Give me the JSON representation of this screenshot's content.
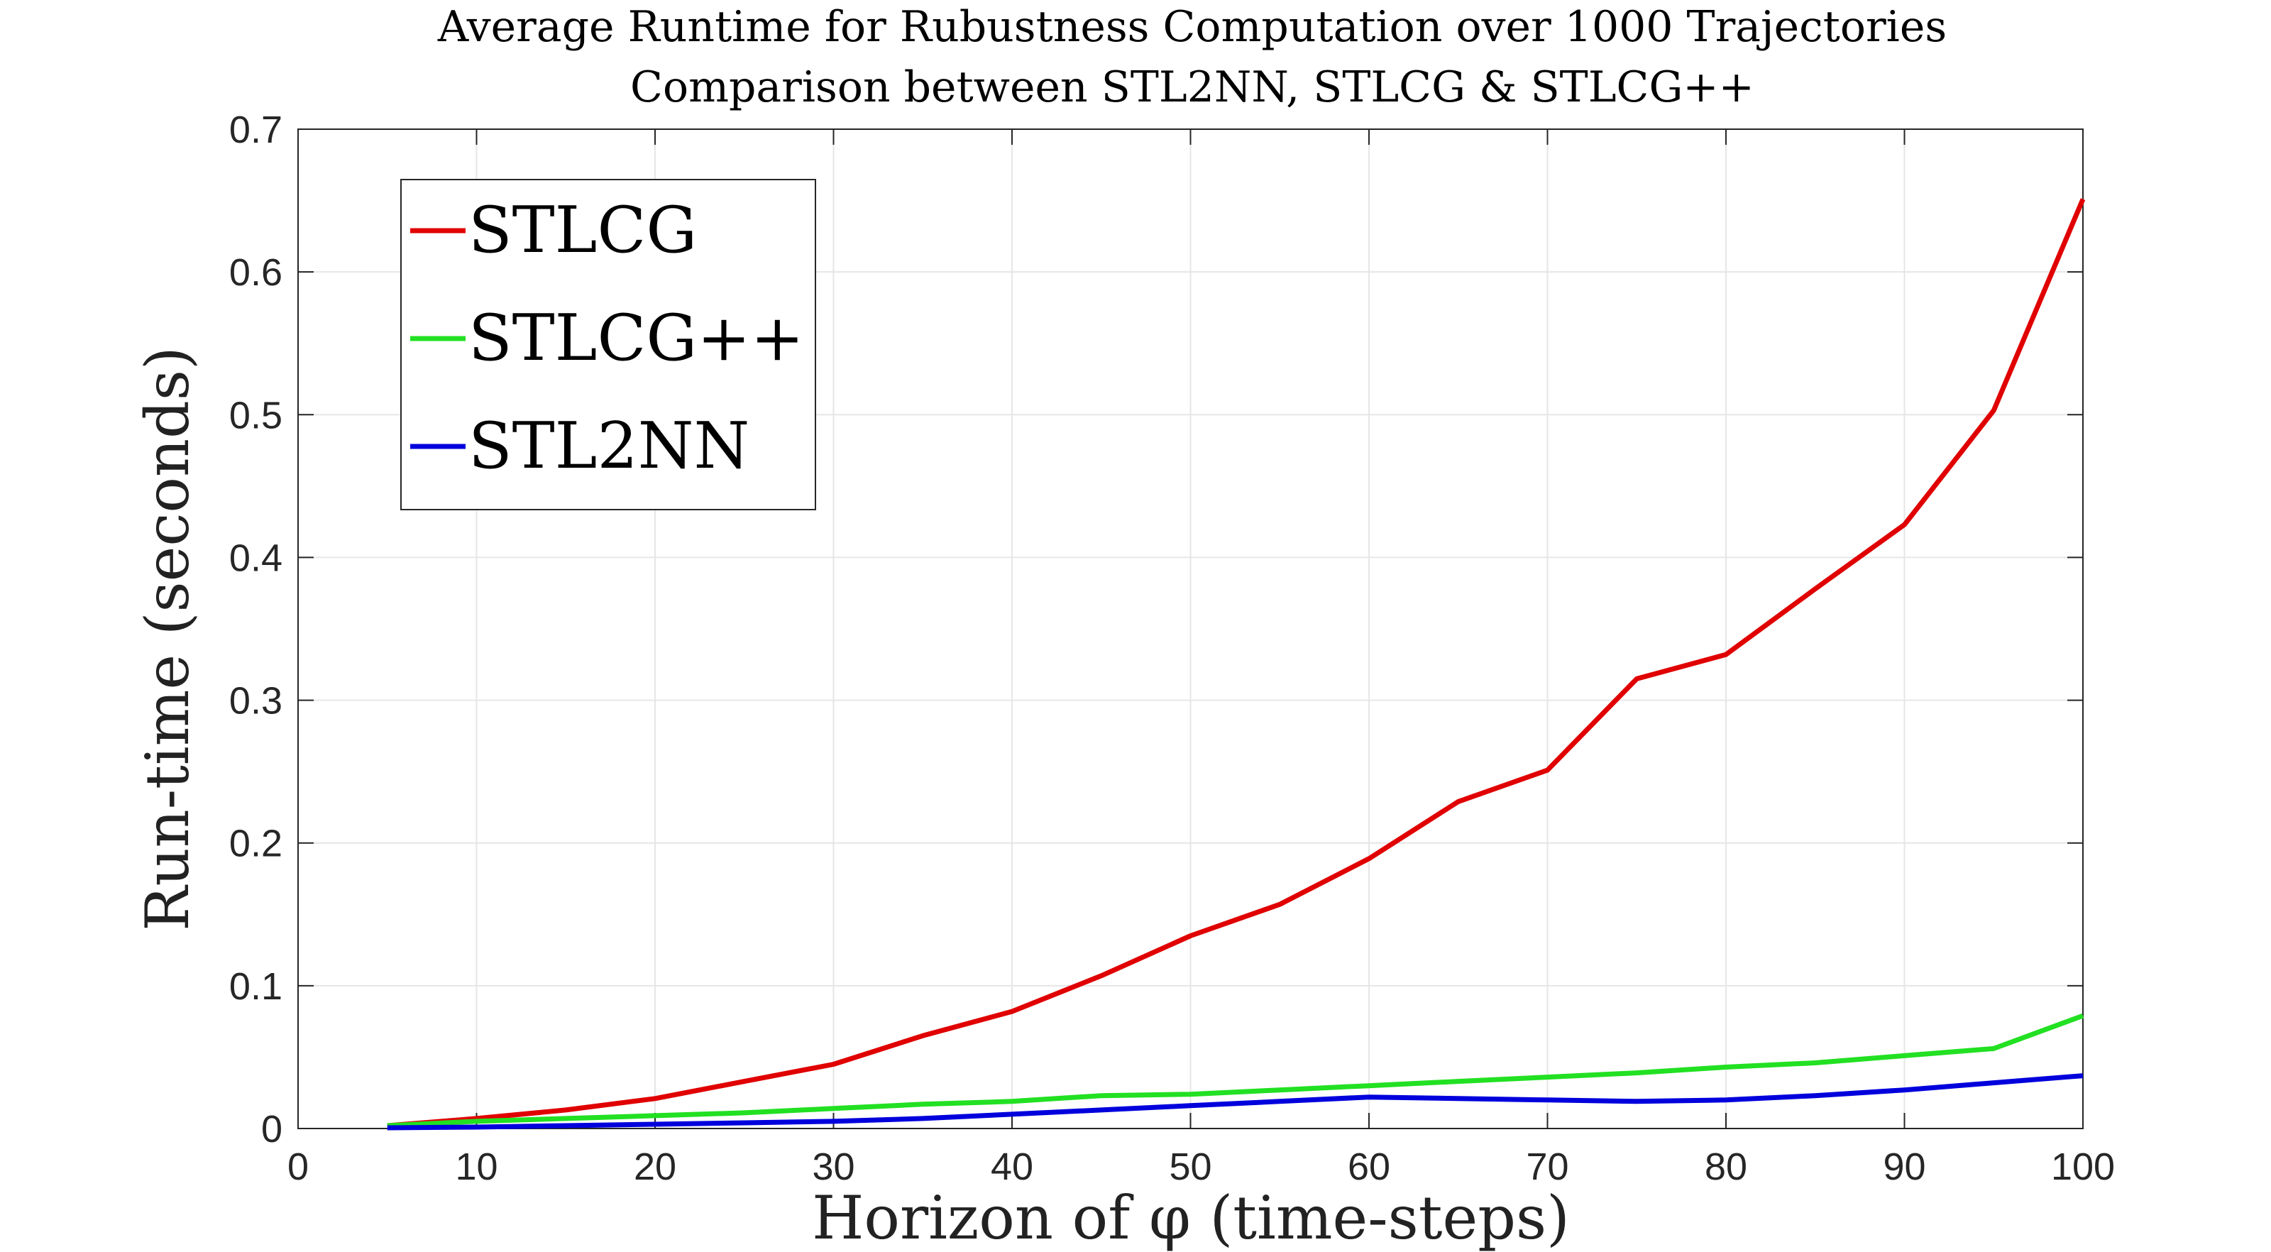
{
  "chart_data": {
    "type": "line",
    "title": "Average Runtime for Rubustness Computation over 1000 Trajectories",
    "subtitle": "Comparison between STL2NN, STLCG & STLCG++",
    "xlabel": "Horizon of φ (time-steps)",
    "ylabel": "Run-time (seconds)",
    "xlim": [
      0,
      100
    ],
    "ylim": [
      0,
      0.7
    ],
    "xticks": [
      "0",
      "10",
      "20",
      "30",
      "40",
      "50",
      "60",
      "70",
      "80",
      "90",
      "100"
    ],
    "yticks": [
      "0",
      "0.1",
      "0.2",
      "0.3",
      "0.4",
      "0.5",
      "0.6",
      "0.7"
    ],
    "grid": true,
    "legend_position": "top-left",
    "x": [
      5,
      10,
      15,
      20,
      25,
      30,
      35,
      40,
      45,
      50,
      55,
      60,
      65,
      70,
      75,
      80,
      85,
      90,
      95,
      100
    ],
    "series": [
      {
        "name": "STLCG",
        "color": "#e00000",
        "values": [
          0.002,
          0.007,
          0.013,
          0.021,
          0.033,
          0.045,
          0.065,
          0.082,
          0.107,
          0.135,
          0.157,
          0.189,
          0.229,
          0.251,
          0.315,
          0.332,
          0.378,
          0.423,
          0.503,
          0.651
        ]
      },
      {
        "name": "STLCG++",
        "color": "#22e022",
        "values": [
          0.002,
          0.005,
          0.007,
          0.009,
          0.011,
          0.014,
          0.017,
          0.019,
          0.023,
          0.024,
          0.027,
          0.03,
          0.033,
          0.036,
          0.039,
          0.043,
          0.046,
          0.051,
          0.056,
          0.079
        ]
      },
      {
        "name": "STL2NN",
        "color": "#0000dd",
        "values": [
          0.0005,
          0.001,
          0.002,
          0.003,
          0.004,
          0.005,
          0.007,
          0.01,
          0.013,
          0.016,
          0.019,
          0.022,
          0.021,
          0.02,
          0.019,
          0.02,
          0.023,
          0.027,
          0.032,
          0.037
        ]
      }
    ]
  }
}
